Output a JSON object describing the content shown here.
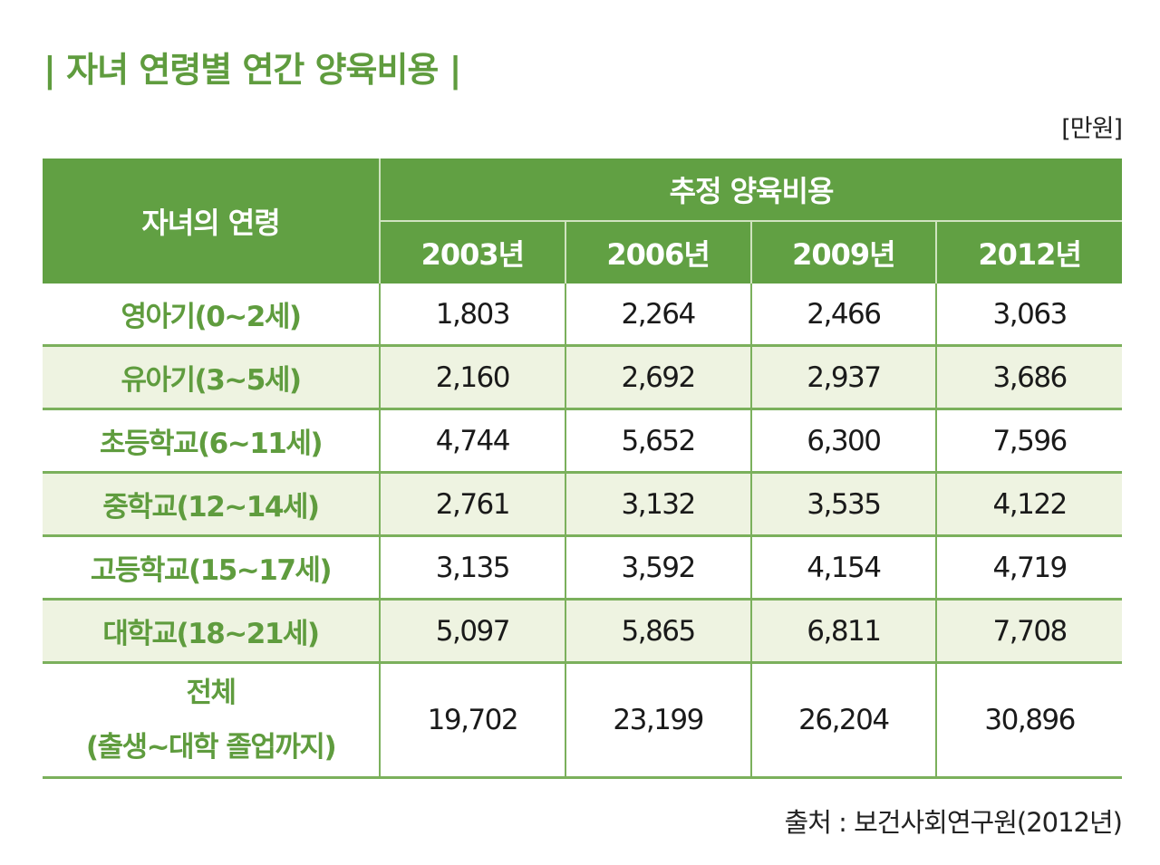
{
  "title": "| 자녀 연령별 연간 양육비용 |",
  "unit": "[만원]",
  "table": {
    "age_header": "자녀의 연령",
    "group_header": "추정 양육비용",
    "years": [
      "2003년",
      "2006년",
      "2009년",
      "2012년"
    ],
    "rows": [
      {
        "age": "영아기(0~2세)",
        "values": [
          "1,803",
          "2,264",
          "2,466",
          "3,063"
        ]
      },
      {
        "age": "유아기(3~5세)",
        "values": [
          "2,160",
          "2,692",
          "2,937",
          "3,686"
        ]
      },
      {
        "age": "초등학교(6~11세)",
        "values": [
          "4,744",
          "5,652",
          "6,300",
          "7,596"
        ]
      },
      {
        "age": "중학교(12~14세)",
        "values": [
          "2,761",
          "3,132",
          "3,535",
          "4,122"
        ]
      },
      {
        "age": "고등학교(15~17세)",
        "values": [
          "3,135",
          "3,592",
          "4,154",
          "4,719"
        ]
      },
      {
        "age": "대학교(18~21세)",
        "values": [
          "5,097",
          "5,865",
          "6,811",
          "7,708"
        ]
      }
    ],
    "total": {
      "age_line1": "전체",
      "age_line2": "(출생~대학 졸업까지)",
      "values": [
        "19,702",
        "23,199",
        "26,204",
        "30,896"
      ]
    }
  },
  "source": "출처 : 보건사회연구원(2012년)",
  "colors": {
    "header_green": "#61a043",
    "text_green": "#5f9c3e",
    "alt_row": "#eef3e1",
    "line_green": "#7bb05c"
  }
}
